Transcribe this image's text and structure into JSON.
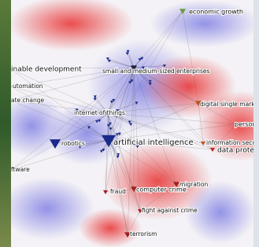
{
  "nodes": [
    {
      "label": "economic growth"
    },
    {
      "label": "inable development"
    },
    {
      "label": "small and medium-sized enterprises"
    },
    {
      "label": "utomation"
    },
    {
      "label": "ate change"
    },
    {
      "label": "digital single market"
    },
    {
      "label": "persona"
    },
    {
      "label": "internet of things"
    },
    {
      "label": "robotics"
    },
    {
      "label": "artificial intelligence"
    },
    {
      "label": "information securit"
    },
    {
      "label": "data protec"
    },
    {
      "label": "ftware"
    },
    {
      "label": "fraud"
    },
    {
      "label": "computer crime"
    },
    {
      "label": "migration"
    },
    {
      "label": "fight against crime"
    },
    {
      "label": "terrorism"
    }
  ]
}
